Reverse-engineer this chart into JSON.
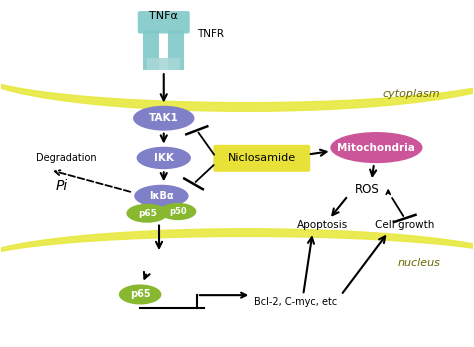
{
  "fig_width": 4.74,
  "fig_height": 3.47,
  "dpi": 100,
  "bg_color": "#ffffff",
  "membrane_color": "#e8e840",
  "purple_color": "#8080c8",
  "green_color": "#88b830",
  "yellow_box_color": "#e8e030",
  "pink_color": "#cc5599",
  "receptor_color": "#80c8c8",
  "cytoplasm_label": "cytoplasm",
  "nucleus_label": "nucleus",
  "tnfa_label": "TNFα",
  "tnfr_label": "TNFR",
  "tak1_label": "TAK1",
  "ikk_label": "IKK",
  "ikba_label": "IκBα",
  "p65_label": "p65",
  "p50_label": "p50",
  "niclosamide_label": "Niclosamide",
  "mitochondria_label": "Mitochondria",
  "ros_label": "ROS",
  "apoptosis_label": "Apoptosis",
  "cellgrowth_label": "Cell growth",
  "degradation_label": "Degradation",
  "pi_label": "Pi",
  "bcl_label": "Bcl-2, C-myc, etc"
}
